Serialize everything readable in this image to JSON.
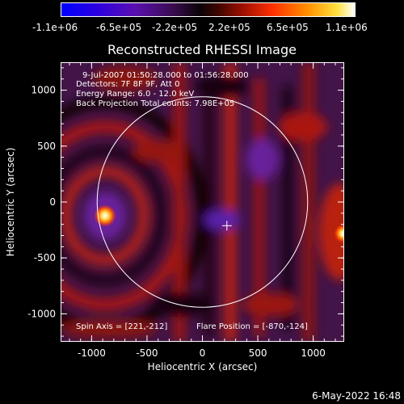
{
  "colorbar": {
    "tick_labels": [
      "-1.1e+06",
      "-6.5e+05",
      "-2.2e+05",
      "2.2e+05",
      "6.5e+05",
      "1.1e+06"
    ],
    "colors": [
      "#0000ff",
      "#3a00d0",
      "#6a1aa0",
      "#3a0f40",
      "#000000",
      "#7a0a00",
      "#ff2000",
      "#ff8a00",
      "#ffe000",
      "#ffffff"
    ]
  },
  "plot": {
    "title": "Reconstructed RHESSI Image",
    "xlabel": "Heliocentric X (arcsec)",
    "ylabel": "Heliocentric Y (arcsec)",
    "x_ticks": [
      "-1000",
      "-500",
      "0",
      "500",
      "1000"
    ],
    "y_ticks": [
      "1000",
      "500",
      "0",
      "-500",
      "-1000"
    ],
    "x_range": [
      -1280,
      1280
    ],
    "y_range": [
      -1250,
      1250
    ],
    "info_lines": [
      "9-Jul-2007 01:50:28.000 to 01:56:28.000",
      "Detectors: 7F 8F 9F, Att 0",
      "Energy Range: 6.0 - 12.0 keV",
      "Back Projection    Total counts: 7.98E+05"
    ],
    "spin_axis": "Spin Axis = [221,-212]",
    "flare_position": "Flare Position = [-870,-124]",
    "solar_radius_arcsec": 950,
    "marker": [
      221,
      -212
    ]
  },
  "timestamp": "6-May-2022 16:48"
}
